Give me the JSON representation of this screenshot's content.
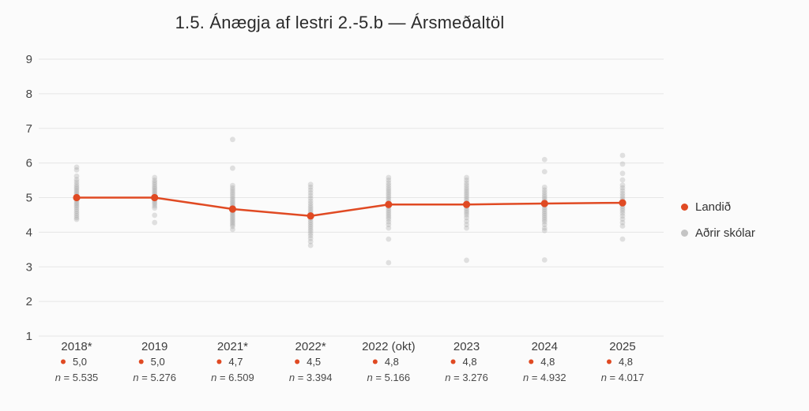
{
  "title": "1.5. Ánægja af lestri 2.-5.b — Ársmeðaltöl",
  "colors": {
    "background": "#fbfbfb",
    "grid": "#e6e6e6",
    "accent_red": "#e04a23",
    "scatter_gray": "#9e9e9e",
    "legend_gray": "#c4c4c4",
    "title_text": "#2b2b2b",
    "axis_text": "#3d3d3d"
  },
  "legend": {
    "items": [
      {
        "label": "Landið",
        "color": "#e04a23"
      },
      {
        "label": "Aðrir skólar",
        "color": "#c4c4c4"
      }
    ]
  },
  "chart_data": {
    "type": "line",
    "title": "1.5. Ánægja af lestri 2.-5.b — Ársmeðaltöl",
    "xlabel": "",
    "ylabel": "",
    "ylim": [
      1,
      9
    ],
    "yticks": [
      9,
      8,
      7,
      6,
      5,
      4,
      3,
      2,
      1
    ],
    "grid": true,
    "legend_position": "right",
    "categories": [
      "2018*",
      "2019",
      "2021*",
      "2022*",
      "2022 (okt)",
      "2023",
      "2024",
      "2025"
    ],
    "n_labels": [
      "n = 5.535",
      "n = 5.276",
      "n = 6.509",
      "n = 3.394",
      "n = 5.166",
      "n = 3.276",
      "n = 4.932",
      "n = 4.017"
    ],
    "series": [
      {
        "name": "Landið",
        "kind": "line",
        "color": "#e04a23",
        "values": [
          5.0,
          5.0,
          4.67,
          4.47,
          4.8,
          4.8,
          4.83,
          4.85
        ],
        "value_labels": [
          "5,0",
          "5,0",
          "4,7",
          "4,5",
          "4,8",
          "4,8",
          "4,8",
          "4,8"
        ]
      },
      {
        "name": "Aðrir skólar",
        "kind": "scatter",
        "color": "#9e9e9e",
        "opacity": 0.3,
        "points_by_category": [
          [
            5.88,
            5.8,
            5.62,
            5.52,
            5.45,
            5.38,
            5.32,
            5.27,
            5.22,
            5.17,
            5.12,
            5.07,
            5.02,
            4.97,
            4.92,
            4.87,
            4.82,
            4.77,
            4.72,
            4.66,
            4.6,
            4.54,
            4.48,
            4.42,
            4.37
          ],
          [
            5.58,
            5.5,
            5.44,
            5.38,
            5.32,
            5.27,
            5.22,
            5.17,
            5.12,
            5.07,
            5.02,
            4.97,
            4.92,
            4.87,
            4.82,
            4.76,
            4.7,
            4.49,
            4.28
          ],
          [
            6.68,
            5.85,
            5.35,
            5.28,
            5.22,
            5.16,
            5.1,
            5.04,
            4.98,
            4.92,
            4.87,
            4.82,
            4.77,
            4.72,
            4.67,
            4.62,
            4.57,
            4.52,
            4.47,
            4.42,
            4.37,
            4.32,
            4.27,
            4.22,
            4.17,
            4.08
          ],
          [
            5.38,
            5.3,
            5.22,
            5.14,
            5.06,
            4.98,
            4.9,
            4.83,
            4.76,
            4.7,
            4.64,
            4.58,
            4.52,
            4.46,
            4.4,
            4.34,
            4.28,
            4.22,
            4.16,
            4.1,
            4.04,
            3.97,
            3.9,
            3.82,
            3.73,
            3.62
          ],
          [
            5.58,
            5.5,
            5.42,
            5.35,
            5.28,
            5.22,
            5.16,
            5.1,
            5.04,
            4.98,
            4.92,
            4.86,
            4.8,
            4.74,
            4.68,
            4.62,
            4.56,
            4.5,
            4.44,
            4.38,
            4.3,
            4.22,
            4.12,
            3.8,
            3.12
          ],
          [
            5.58,
            5.5,
            5.42,
            5.35,
            5.28,
            5.22,
            5.16,
            5.1,
            5.04,
            4.98,
            4.92,
            4.86,
            4.8,
            4.74,
            4.68,
            4.62,
            4.56,
            4.5,
            4.42,
            4.32,
            4.22,
            4.12,
            3.19
          ],
          [
            6.1,
            5.75,
            5.3,
            5.22,
            5.15,
            5.08,
            5.02,
            4.96,
            4.9,
            4.84,
            4.78,
            4.72,
            4.66,
            4.6,
            4.54,
            4.48,
            4.42,
            4.36,
            4.3,
            4.22,
            4.12,
            4.05,
            3.2
          ],
          [
            6.22,
            5.97,
            5.7,
            5.51,
            5.36,
            5.28,
            5.2,
            5.12,
            5.05,
            4.98,
            4.92,
            4.86,
            4.8,
            4.74,
            4.68,
            4.62,
            4.55,
            4.47,
            4.38,
            4.28,
            4.18,
            3.8
          ]
        ]
      }
    ]
  }
}
